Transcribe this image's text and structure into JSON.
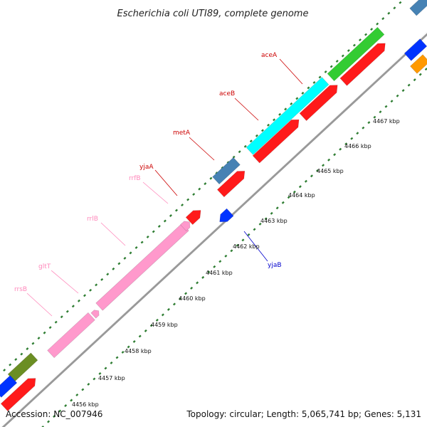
{
  "title": "Escherichia coli UTI89, complete genome",
  "footer": {
    "accession": "Accession: NC_007946",
    "summary": "Topology: circular; Length: 5,065,741 bp; Genes: 5,131"
  },
  "colors": {
    "backbone": "#999999",
    "tick_dots": "#2e7d32",
    "red": "#ff1a1a",
    "pink": "#ff99cc",
    "cyan": "#00ffff",
    "steelblue": "#4682b4",
    "green": "#33cc33",
    "blue": "#0033ff",
    "olive": "#6b8e23",
    "orange": "#ff9900",
    "label_red": "#cc0000",
    "label_pink": "#ff88bb",
    "label_blue": "#0000cc"
  },
  "ticks": [
    {
      "label": "4456 kbp"
    },
    {
      "label": "4457 kbp"
    },
    {
      "label": "4458 kbp"
    },
    {
      "label": "4459 kbp"
    },
    {
      "label": "4460 kbp"
    },
    {
      "label": "4461 kbp"
    },
    {
      "label": "4462 kbp"
    },
    {
      "label": "4463 kbp"
    },
    {
      "label": "4464 kbp"
    },
    {
      "label": "4465 kbp"
    },
    {
      "label": "4466 kbp"
    },
    {
      "label": "4467 kbp"
    }
  ],
  "gene_labels": [
    {
      "name": "aceA",
      "color_key": "label_red"
    },
    {
      "name": "aceB",
      "color_key": "label_red"
    },
    {
      "name": "metA",
      "color_key": "label_red"
    },
    {
      "name": "yjaA",
      "color_key": "label_red"
    },
    {
      "name": "rrfB",
      "color_key": "label_pink"
    },
    {
      "name": "rrlB",
      "color_key": "label_pink"
    },
    {
      "name": "gltT",
      "color_key": "label_pink"
    },
    {
      "name": "rrsB",
      "color_key": "label_pink"
    },
    {
      "name": "yjaB",
      "color_key": "label_blue"
    }
  ]
}
